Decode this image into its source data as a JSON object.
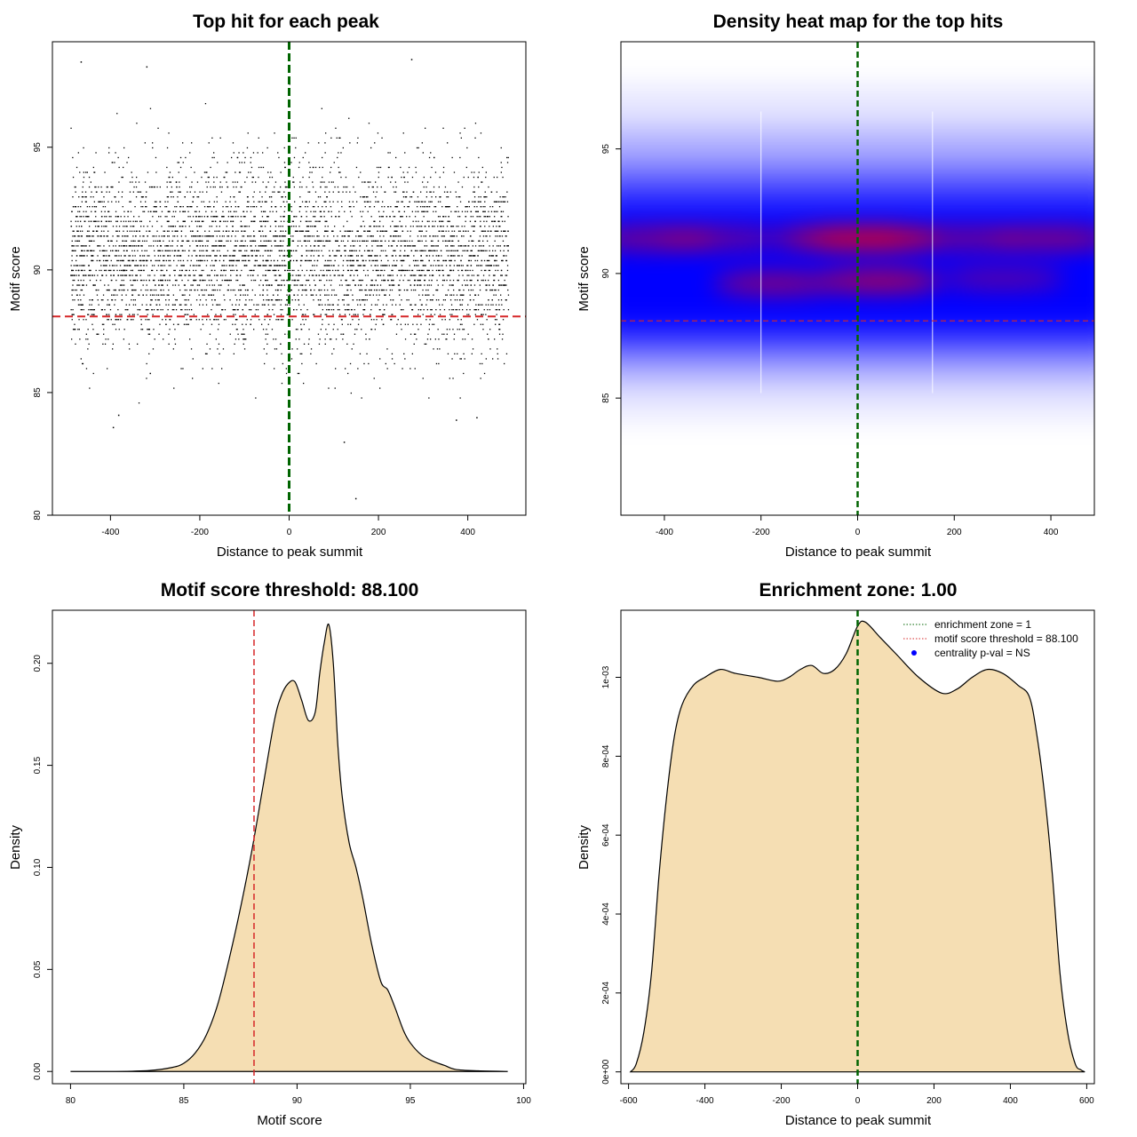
{
  "colors": {
    "threshold_line": "#d62728",
    "center_line": "#006400",
    "density_fill": "#f5deb3",
    "heat_low": "#ffffff",
    "heat_mid": "#0000ff",
    "heat_high": "#ff0000",
    "points": "#000000",
    "legend_point": "#0000ff"
  },
  "chart_data": [
    {
      "type": "scatter",
      "title": "Top hit for each peak",
      "xlabel": "Distance to peak summit",
      "ylabel": "Motif score",
      "xlim": [
        -530,
        530
      ],
      "ylim": [
        80,
        99.3
      ],
      "xticks": [
        -400,
        -200,
        0,
        200,
        400
      ],
      "yticks": [
        80,
        85,
        90,
        95
      ],
      "vline": 0,
      "hline": 88.1,
      "point_distribution": {
        "x_range": [
          -490,
          490
        ],
        "score_mean": 90.6,
        "score_sd": 1.9,
        "n_points_approx": 5000
      },
      "outliers": [
        [
          -467,
          98.5
        ],
        [
          273,
          98.6
        ],
        [
          -320,
          98.3
        ],
        [
          0,
          97.6
        ],
        [
          148,
          80.7
        ],
        [
          122,
          83.0
        ],
        [
          -395,
          83.6
        ],
        [
          -383,
          84.1
        ],
        [
          373,
          83.9
        ],
        [
          419,
          84.0
        ]
      ]
    },
    {
      "type": "heatmap",
      "title": "Density heat map for the top hits",
      "xlabel": "Distance to peak summit",
      "ylabel": "Motif score",
      "xlim": [
        -490,
        490
      ],
      "ylim": [
        80.3,
        99.3
      ],
      "xticks": [
        -400,
        -200,
        0,
        200,
        400
      ],
      "yticks": [
        85,
        90,
        95
      ],
      "vline": 0,
      "hline": 88.1,
      "hotspots": [
        {
          "x": -420,
          "y": 91.4,
          "intensity": 0.55
        },
        {
          "x": -280,
          "y": 91.4,
          "intensity": 0.45
        },
        {
          "x": -170,
          "y": 89.6,
          "intensity": 0.6
        },
        {
          "x": -40,
          "y": 91.4,
          "intensity": 0.75
        },
        {
          "x": 40,
          "y": 91.4,
          "intensity": 0.95
        },
        {
          "x": 45,
          "y": 89.7,
          "intensity": 0.75
        },
        {
          "x": 220,
          "y": 91.4,
          "intensity": 0.5
        },
        {
          "x": 400,
          "y": 91.4,
          "intensity": 0.6
        },
        {
          "x": 300,
          "y": 89.8,
          "intensity": 0.4
        }
      ]
    },
    {
      "type": "area",
      "title": "Motif score threshold: 88.100",
      "xlabel": "Motif score",
      "ylabel": "Density",
      "xlim": [
        79.2,
        100.1
      ],
      "ylim": [
        -0.006,
        0.226
      ],
      "xticks": [
        80,
        85,
        90,
        95,
        100
      ],
      "yticks": [
        0.0,
        0.05,
        0.1,
        0.15,
        0.2
      ],
      "ytick_labels": [
        "0.00",
        "0.05",
        "0.10",
        "0.15",
        "0.20"
      ],
      "vline": 88.1,
      "x": [
        80,
        82,
        83.5,
        84.5,
        85,
        85.5,
        86,
        86.5,
        87,
        87.5,
        88,
        88.5,
        89,
        89.3,
        89.6,
        89.9,
        90.2,
        90.5,
        90.8,
        91.0,
        91.2,
        91.4,
        91.6,
        91.8,
        92.0,
        92.3,
        92.6,
        92.9,
        93.3,
        93.7,
        94.0,
        94.3,
        94.7,
        95.0,
        95.5,
        96.0,
        96.5,
        97.0,
        98.0,
        99.3
      ],
      "y": [
        0.0,
        0.0,
        0.0005,
        0.002,
        0.004,
        0.009,
        0.018,
        0.033,
        0.055,
        0.08,
        0.108,
        0.14,
        0.172,
        0.184,
        0.19,
        0.191,
        0.182,
        0.172,
        0.176,
        0.195,
        0.21,
        0.219,
        0.2,
        0.16,
        0.134,
        0.112,
        0.1,
        0.085,
        0.062,
        0.044,
        0.04,
        0.032,
        0.02,
        0.014,
        0.008,
        0.005,
        0.003,
        0.001,
        0.0003,
        0.0
      ]
    },
    {
      "type": "area",
      "title": "Enrichment zone: 1.00",
      "xlabel": "Distance to peak summit",
      "ylabel": "Density",
      "xlim": [
        -620,
        620
      ],
      "ylim": [
        -3e-05,
        0.00117
      ],
      "xticks": [
        -600,
        -400,
        -200,
        0,
        200,
        400,
        600
      ],
      "yticks": [
        0,
        0.0002,
        0.0004,
        0.0006,
        0.0008,
        0.001
      ],
      "ytick_labels": [
        "0e+00",
        "2e-04",
        "4e-04",
        "6e-04",
        "8e-04",
        "1e-03"
      ],
      "vline": 0,
      "x": [
        -595,
        -580,
        -560,
        -540,
        -520,
        -500,
        -480,
        -460,
        -430,
        -400,
        -360,
        -320,
        -260,
        -210,
        -180,
        -150,
        -120,
        -90,
        -60,
        -30,
        0,
        20,
        60,
        100,
        160,
        220,
        260,
        300,
        340,
        380,
        420,
        450,
        470,
        490,
        510,
        530,
        550,
        570,
        585,
        595
      ],
      "y": [
        0.0,
        2e-05,
        0.0001,
        0.00025,
        0.0005,
        0.0007,
        0.00085,
        0.00093,
        0.00098,
        0.001,
        0.00102,
        0.00101,
        0.001,
        0.00099,
        0.001,
        0.00102,
        0.00103,
        0.00101,
        0.00102,
        0.00106,
        0.00113,
        0.00114,
        0.0011,
        0.00106,
        0.001,
        0.00096,
        0.00097,
        0.001,
        0.00102,
        0.00101,
        0.00098,
        0.00095,
        0.00085,
        0.0007,
        0.0005,
        0.00025,
        0.0001,
        2e-05,
        5e-06,
        0.0
      ]
    }
  ],
  "legend": {
    "items": [
      {
        "label": "enrichment zone = 1",
        "style": "dotted-green"
      },
      {
        "label": "motif score threshold = 88.100",
        "style": "dotted-red"
      },
      {
        "label": "centrality p-val = NS",
        "style": "point-blue"
      }
    ]
  }
}
